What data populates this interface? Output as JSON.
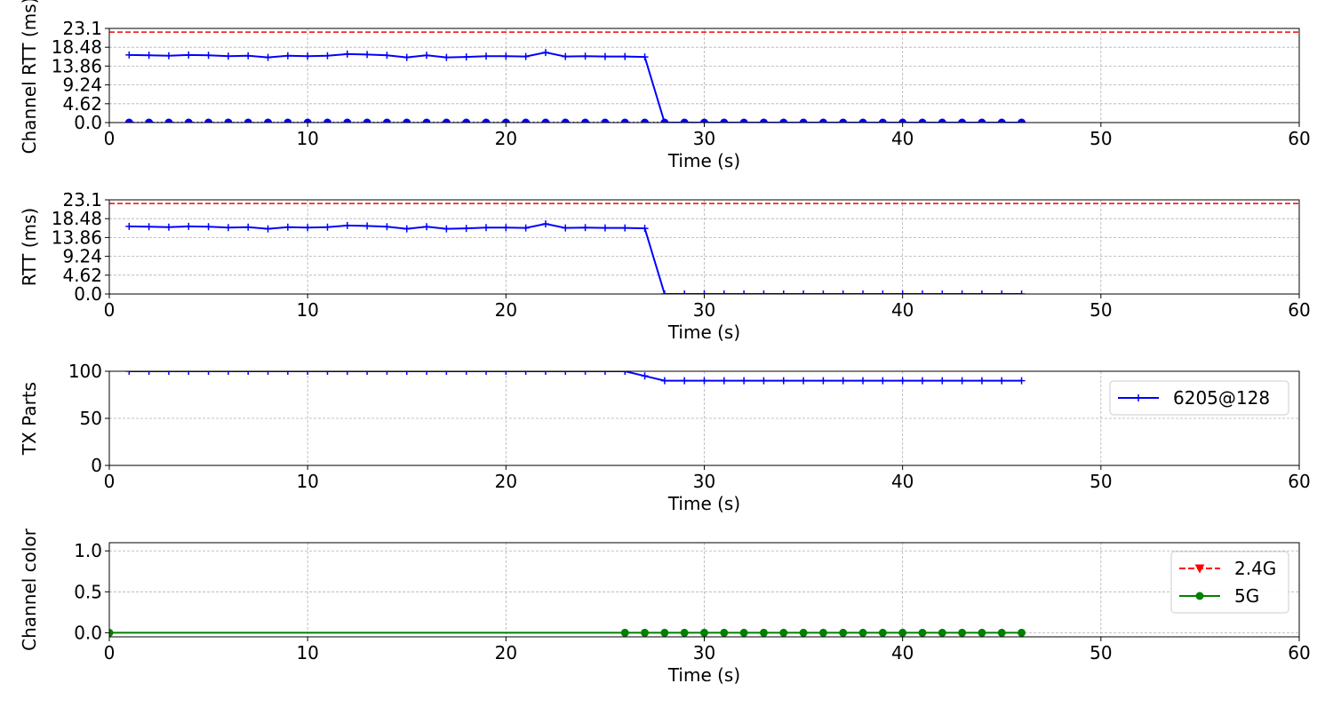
{
  "chart_data": [
    {
      "type": "line",
      "ylabel": "Channel RTT (ms)",
      "xlabel": "Time (s)",
      "xlim": [
        0,
        60
      ],
      "ylim": [
        0,
        23.1
      ],
      "xticks": [
        0,
        10,
        20,
        30,
        40,
        50,
        60
      ],
      "yticks": [
        0.0,
        4.62,
        9.24,
        13.86,
        18.48,
        23.1
      ],
      "ytick_labels": [
        "0.0",
        "4.62",
        "9.24",
        "13.86",
        "18.48",
        "23.1"
      ],
      "grid": true,
      "hline": {
        "y": 22.2,
        "color": "#ff0000",
        "style": "dashed"
      },
      "series": [
        {
          "color": "#0000ff",
          "marker": "plus",
          "line": "solid",
          "x": [
            1,
            2,
            3,
            4,
            5,
            6,
            7,
            8,
            9,
            10,
            11,
            12,
            13,
            14,
            15,
            16,
            17,
            18,
            19,
            20,
            21,
            22,
            23,
            24,
            25,
            26,
            27,
            28,
            29,
            30,
            31,
            32,
            33,
            34,
            35,
            36,
            37,
            38,
            39,
            40,
            41,
            42,
            43,
            44,
            45,
            46
          ],
          "y": [
            16.6,
            16.5,
            16.4,
            16.6,
            16.5,
            16.3,
            16.4,
            16.0,
            16.4,
            16.3,
            16.4,
            16.8,
            16.7,
            16.5,
            16.0,
            16.5,
            16.0,
            16.1,
            16.3,
            16.3,
            16.2,
            17.2,
            16.2,
            16.3,
            16.2,
            16.2,
            16.1,
            0,
            0,
            0,
            0,
            0,
            0,
            0,
            0,
            0,
            0,
            0,
            0,
            0,
            0,
            0,
            0,
            0,
            0,
            0
          ]
        },
        {
          "color": "#0000ff",
          "marker": "circle",
          "line": "dotted",
          "x": [
            1,
            2,
            3,
            4,
            5,
            6,
            7,
            8,
            9,
            10,
            11,
            12,
            13,
            14,
            15,
            16,
            17,
            18,
            19,
            20,
            21,
            22,
            23,
            24,
            25,
            26,
            27,
            28,
            29,
            30,
            31,
            32,
            33,
            34,
            35,
            36,
            37,
            38,
            39,
            40,
            41,
            42,
            43,
            44,
            45,
            46
          ],
          "y": [
            0,
            0,
            0,
            0,
            0,
            0,
            0,
            0,
            0,
            0,
            0,
            0,
            0,
            0,
            0,
            0,
            0,
            0,
            0,
            0,
            0,
            0,
            0,
            0,
            0,
            0,
            0,
            0,
            0,
            0,
            0,
            0,
            0,
            0,
            0,
            0,
            0,
            0,
            0,
            0,
            0,
            0,
            0,
            0,
            0,
            0
          ]
        }
      ]
    },
    {
      "type": "line",
      "ylabel": "RTT (ms)",
      "xlabel": "Time (s)",
      "xlim": [
        0,
        60
      ],
      "ylim": [
        0,
        23.1
      ],
      "xticks": [
        0,
        10,
        20,
        30,
        40,
        50,
        60
      ],
      "yticks": [
        0.0,
        4.62,
        9.24,
        13.86,
        18.48,
        23.1
      ],
      "ytick_labels": [
        "0.0",
        "4.62",
        "9.24",
        "13.86",
        "18.48",
        "23.1"
      ],
      "grid": true,
      "hline": {
        "y": 22.2,
        "color": "#ff0000",
        "style": "dashed"
      },
      "series": [
        {
          "color": "#0000ff",
          "marker": "plus",
          "line": "solid",
          "x": [
            1,
            2,
            3,
            4,
            5,
            6,
            7,
            8,
            9,
            10,
            11,
            12,
            13,
            14,
            15,
            16,
            17,
            18,
            19,
            20,
            21,
            22,
            23,
            24,
            25,
            26,
            27,
            28,
            29,
            30,
            31,
            32,
            33,
            34,
            35,
            36,
            37,
            38,
            39,
            40,
            41,
            42,
            43,
            44,
            45,
            46
          ],
          "y": [
            16.6,
            16.5,
            16.4,
            16.6,
            16.5,
            16.3,
            16.4,
            16.0,
            16.4,
            16.3,
            16.4,
            16.8,
            16.7,
            16.5,
            16.0,
            16.5,
            16.0,
            16.1,
            16.3,
            16.3,
            16.2,
            17.2,
            16.2,
            16.3,
            16.2,
            16.2,
            16.1,
            0,
            0,
            0,
            0,
            0,
            0,
            0,
            0,
            0,
            0,
            0,
            0,
            0,
            0,
            0,
            0,
            0,
            0,
            0
          ]
        }
      ]
    },
    {
      "type": "line",
      "ylabel": "TX Parts",
      "xlabel": "Time (s)",
      "xlim": [
        0,
        60
      ],
      "ylim": [
        0,
        100
      ],
      "xticks": [
        0,
        10,
        20,
        30,
        40,
        50,
        60
      ],
      "yticks": [
        0,
        50,
        100
      ],
      "ytick_labels": [
        "0",
        "50",
        "100"
      ],
      "grid": true,
      "legend_position": "top-right",
      "series": [
        {
          "name": "6205@128",
          "color": "#0000ff",
          "marker": "plus",
          "line": "solid",
          "x": [
            1,
            2,
            3,
            4,
            5,
            6,
            7,
            8,
            9,
            10,
            11,
            12,
            13,
            14,
            15,
            16,
            17,
            18,
            19,
            20,
            21,
            22,
            23,
            24,
            25,
            26,
            27,
            28,
            29,
            30,
            31,
            32,
            33,
            34,
            35,
            36,
            37,
            38,
            39,
            40,
            41,
            42,
            43,
            44,
            45,
            46
          ],
          "y": [
            100,
            100,
            100,
            100,
            100,
            100,
            100,
            100,
            100,
            100,
            100,
            100,
            100,
            100,
            100,
            100,
            100,
            100,
            100,
            100,
            100,
            100,
            100,
            100,
            100,
            100,
            95,
            90,
            90,
            90,
            90,
            90,
            90,
            90,
            90,
            90,
            90,
            90,
            90,
            90,
            90,
            90,
            90,
            90,
            90,
            90
          ]
        }
      ]
    },
    {
      "type": "line",
      "ylabel": "Channel color",
      "xlabel": "Time (s)",
      "xlim": [
        0,
        60
      ],
      "ylim": [
        -0.05,
        1.1
      ],
      "xticks": [
        0,
        10,
        20,
        30,
        40,
        50,
        60
      ],
      "yticks": [
        0.0,
        0.5,
        1.0
      ],
      "ytick_labels": [
        "0.0",
        "0.5",
        "1.0"
      ],
      "grid": true,
      "legend_position": "top-right",
      "series": [
        {
          "name": "2.4G",
          "color": "#ff0000",
          "marker": "triangle-down",
          "line": "dashed",
          "x": [],
          "y": []
        },
        {
          "name": "5G",
          "color": "#008000",
          "marker": "circle",
          "line": "solid",
          "x": [
            0,
            26,
            27,
            28,
            29,
            30,
            31,
            32,
            33,
            34,
            35,
            36,
            37,
            38,
            39,
            40,
            41,
            42,
            43,
            44,
            45,
            46
          ],
          "y": [
            0,
            0,
            0,
            0,
            0,
            0,
            0,
            0,
            0,
            0,
            0,
            0,
            0,
            0,
            0,
            0,
            0,
            0,
            0,
            0,
            0,
            0
          ]
        }
      ]
    }
  ]
}
